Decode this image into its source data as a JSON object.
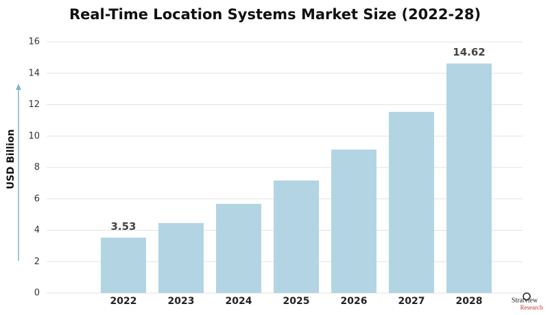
{
  "chart_data": {
    "type": "bar",
    "title": "Real-Time Location Systems Market Size (2022-28)",
    "y_label": "USD Billion",
    "categories": [
      "2022",
      "2023",
      "2024",
      "2025",
      "2026",
      "2027",
      "2028"
    ],
    "values": [
      3.53,
      4.46,
      5.68,
      7.17,
      9.14,
      11.54,
      14.62
    ],
    "value_labels": [
      "3.53",
      null,
      null,
      null,
      null,
      null,
      "14.62"
    ],
    "color": "#b3d5e3",
    "ylim": [
      0,
      16
    ],
    "yticks": [
      0,
      2,
      4,
      6,
      8,
      10,
      12,
      14,
      16
    ],
    "grid": true,
    "logo": [
      "Stratview",
      "Research"
    ]
  }
}
